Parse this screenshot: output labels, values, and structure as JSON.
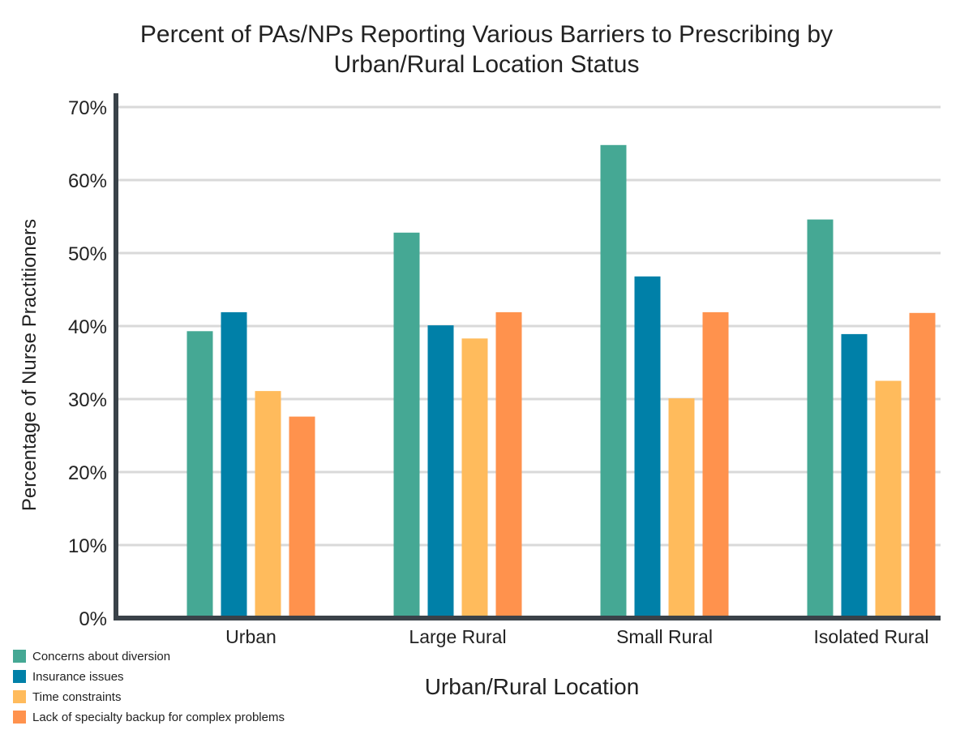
{
  "chart_data": {
    "type": "bar",
    "title_lines": [
      "Percent of PAs/NPs Reporting Various Barriers to Prescribing by",
      "Urban/Rural Location Status"
    ],
    "xlabel": "Urban/Rural Location",
    "ylabel": "Percentage of Nurse Practitioners",
    "categories": [
      "Urban",
      "Large Rural",
      "Small Rural",
      "Isolated Rural"
    ],
    "ylim": [
      0,
      70
    ],
    "yticks": [
      "0%",
      "10%",
      "20%",
      "30%",
      "40%",
      "50%",
      "60%",
      "70%"
    ],
    "grid": true,
    "legend_position": "bottom-left",
    "series": [
      {
        "name": "Concerns about diversion",
        "color": "#45A894",
        "values": [
          39.3,
          52.8,
          64.8,
          54.6
        ]
      },
      {
        "name": "Insurance issues",
        "color": "#0080A8",
        "values": [
          41.9,
          40.1,
          46.8,
          38.9
        ]
      },
      {
        "name": "Time constraints",
        "color": "#FFBB5C",
        "values": [
          31.1,
          38.3,
          30.1,
          32.5
        ]
      },
      {
        "name": "Lack of specialty backup for complex problems",
        "color": "#FF924D",
        "values": [
          27.6,
          41.9,
          41.9,
          41.8
        ]
      }
    ]
  }
}
